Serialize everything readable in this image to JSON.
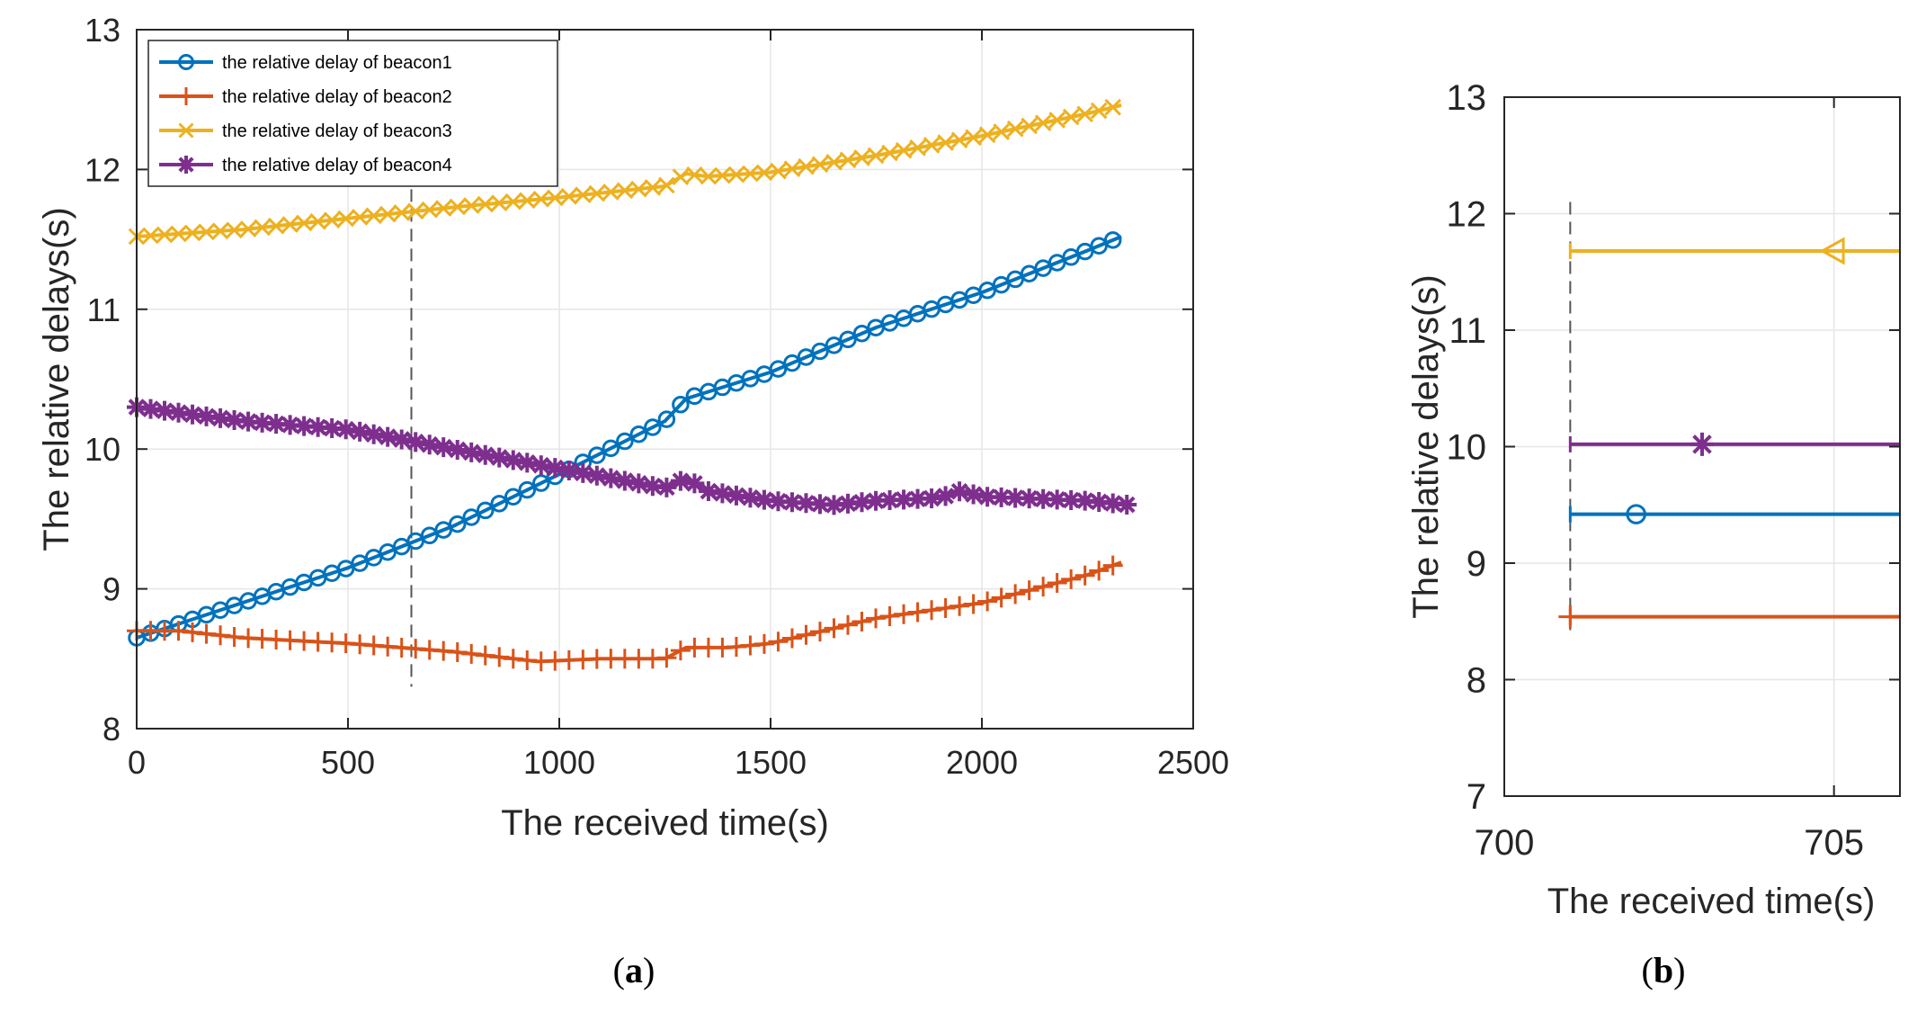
{
  "colors": {
    "beacon1": "#0072BD",
    "beacon2": "#D95319",
    "beacon3": "#EDB120",
    "beacon4": "#7E2F8E",
    "axis": "#262626",
    "grid": "#E6E6E6",
    "marker_line": "#555555"
  },
  "panel_a_label": {
    "open": "(",
    "letter": "a",
    "close": ")"
  },
  "panel_b_label": {
    "open": "(",
    "letter": "b",
    "close": ")"
  },
  "chart_data": [
    {
      "type": "line",
      "panel": "a",
      "xlabel": "The received time(s)",
      "ylabel": "The relative delays(s)",
      "xlim": [
        0,
        2500
      ],
      "ylim": [
        8,
        13
      ],
      "xticks": [
        0,
        500,
        1000,
        1500,
        2000,
        2500
      ],
      "yticks": [
        8,
        9,
        10,
        11,
        12,
        13
      ],
      "grid": true,
      "legend_position": "top-left",
      "vertical_dashed_line_x": 650,
      "vertical_dashed_line_range": [
        8.3,
        12.0
      ],
      "series": [
        {
          "name": "the relative delay of beacon1",
          "marker": "circle",
          "x": [
            0,
            250,
            500,
            750,
            1000,
            1250,
            1300,
            1500,
            1750,
            2000,
            2250,
            2330
          ],
          "y": [
            8.65,
            8.9,
            9.15,
            9.45,
            9.82,
            10.2,
            10.36,
            10.55,
            10.87,
            11.12,
            11.42,
            11.52
          ]
        },
        {
          "name": "the relative delay of beacon2",
          "marker": "plus",
          "x": [
            0,
            100,
            250,
            500,
            750,
            950,
            1100,
            1250,
            1300,
            1400,
            1500,
            1750,
            2000,
            2250,
            2330
          ],
          "y": [
            8.7,
            8.7,
            8.65,
            8.61,
            8.55,
            8.48,
            8.5,
            8.5,
            8.58,
            8.58,
            8.61,
            8.79,
            8.9,
            9.1,
            9.19
          ]
        },
        {
          "name": "the relative delay of beacon3",
          "marker": "x",
          "x": [
            0,
            250,
            500,
            750,
            1000,
            1250,
            1300,
            1350,
            1500,
            1750,
            2000,
            2250,
            2330
          ],
          "y": [
            11.52,
            11.57,
            11.65,
            11.73,
            11.8,
            11.88,
            11.97,
            11.95,
            11.98,
            12.1,
            12.24,
            12.4,
            12.46
          ]
        },
        {
          "name": "the relative delay of beacon4",
          "marker": "star",
          "x": [
            0,
            250,
            500,
            750,
            1000,
            1250,
            1300,
            1350,
            1500,
            1650,
            1750,
            1900,
            1950,
            2000,
            2250,
            2350
          ],
          "y": [
            10.3,
            10.2,
            10.14,
            10.0,
            9.86,
            9.72,
            9.79,
            9.7,
            9.63,
            9.6,
            9.63,
            9.65,
            9.7,
            9.66,
            9.63,
            9.6
          ]
        }
      ]
    },
    {
      "type": "line",
      "panel": "b",
      "xlabel": "The received time(s)",
      "ylabel": "The relative delays(s)",
      "xlim": [
        700,
        706
      ],
      "ylim": [
        7,
        13
      ],
      "xticks": [
        700,
        705
      ],
      "yticks": [
        7,
        8,
        9,
        10,
        11,
        12,
        13
      ],
      "grid": true,
      "vertical_dashed_line_x": 701,
      "vertical_dashed_line_range": [
        8.4,
        12.1
      ],
      "series": [
        {
          "name": "beacon1",
          "marker": "circle",
          "x": [
            700,
            706
          ],
          "y": [
            9.42,
            9.42
          ],
          "marker_x": 702
        },
        {
          "name": "beacon2",
          "marker": "plus",
          "x": [
            700,
            706
          ],
          "y": [
            8.54,
            8.54
          ],
          "marker_x": 701
        },
        {
          "name": "beacon3",
          "marker": "triangle-left",
          "x": [
            700,
            706
          ],
          "y": [
            11.68,
            11.68
          ],
          "marker_x": 705
        },
        {
          "name": "beacon4",
          "marker": "star",
          "x": [
            700,
            706
          ],
          "y": [
            10.02,
            10.02
          ],
          "marker_x": 703
        }
      ]
    }
  ]
}
